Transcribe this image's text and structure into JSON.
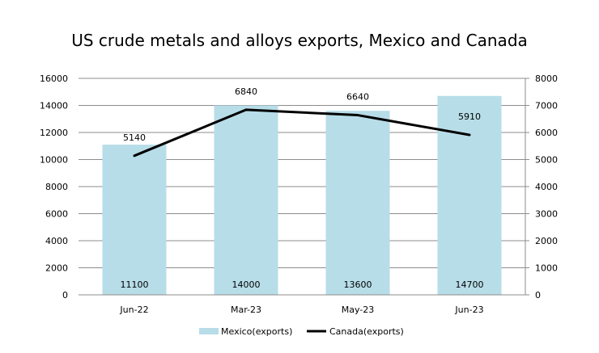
{
  "chart_data": {
    "type": "bar+line",
    "title": "US crude metals and alloys exports, Mexico and Canada",
    "categories": [
      "Jun-22",
      "Mar-23",
      "May-23",
      "Jun-23"
    ],
    "series": [
      {
        "name": "Mexico(exports)",
        "type": "bar",
        "axis": "left",
        "color": "#b7dde8",
        "values": [
          11100,
          14000,
          13600,
          14700
        ]
      },
      {
        "name": "Canada(exports)",
        "type": "line",
        "axis": "right",
        "color": "#000000",
        "values": [
          5140,
          6840,
          6640,
          5910
        ]
      }
    ],
    "y_left": {
      "range": [
        0,
        16000
      ],
      "ticks": [
        0,
        2000,
        4000,
        6000,
        8000,
        10000,
        12000,
        14000,
        16000
      ]
    },
    "y_right": {
      "range": [
        0,
        8000
      ],
      "ticks": [
        0,
        1000,
        2000,
        3000,
        4000,
        5000,
        6000,
        7000,
        8000
      ]
    },
    "grid": true,
    "legend_position": "bottom"
  }
}
